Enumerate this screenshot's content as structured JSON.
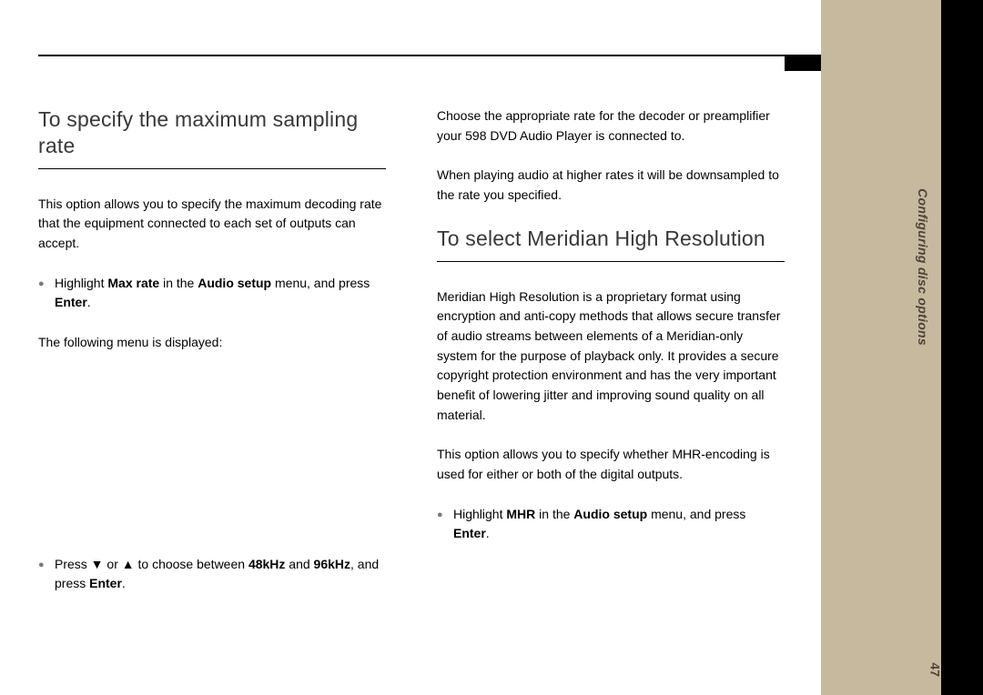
{
  "sidebar": {
    "section_label": "Configuring disc options",
    "page_number": "47",
    "tan_color": "#c6b99e",
    "black_color": "#000000",
    "label_color": "#4d4438"
  },
  "left": {
    "heading": "To specify the maximum sampling rate",
    "p1": "This option allows you to specify the maximum decoding rate that the equipment connected to each set of outputs can accept.",
    "b1_pre": "Highlight ",
    "b1_bold1": "Max rate",
    "b1_mid": " in the ",
    "b1_bold2": "Audio setup",
    "b1_post": " menu, and press ",
    "b1_bold3": "Enter",
    "b1_end": ".",
    "p2": "The following menu is displayed:",
    "b2_pre": "Press ▼ or ▲ to choose between ",
    "b2_bold1": "48kHz",
    "b2_mid": " and ",
    "b2_bold2": "96kHz",
    "b2_post": ", and press ",
    "b2_bold3": "Enter",
    "b2_end": "."
  },
  "right": {
    "p1": "Choose the appropriate rate for the decoder or preamplifier your 598 DVD Audio Player is connected to.",
    "p2": "When playing audio at higher rates it will be downsampled to the rate you specified.",
    "heading": "To select Meridian High Resolution",
    "p3": "Meridian High Resolution is a proprietary format using encryption and anti-copy methods that allows secure transfer of audio streams between elements of a Meridian-only system for the purpose of playback only. It provides a secure copyright protection environment and has the very important benefit of lowering jitter and improving sound quality on all material.",
    "p4": "This option allows you to specify whether MHR-encoding is used for either or both of the digital outputs.",
    "b1_pre": "Highlight ",
    "b1_bold1": "MHR",
    "b1_mid": " in the ",
    "b1_bold2": "Audio setup",
    "b1_post": " menu, and press ",
    "b1_bold3": "Enter",
    "b1_end": "."
  }
}
